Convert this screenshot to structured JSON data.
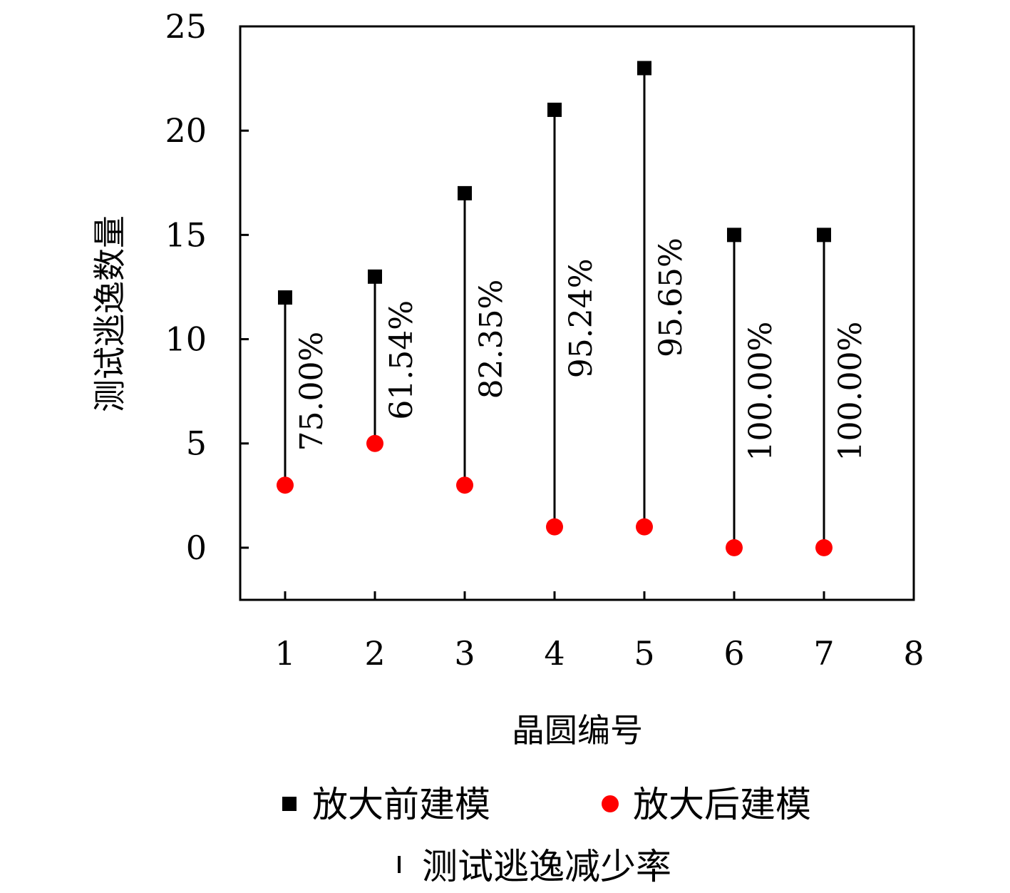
{
  "chart_data": {
    "type": "scatter",
    "x": [
      1,
      2,
      3,
      4,
      5,
      6,
      7
    ],
    "series": [
      {
        "name": "放大前建模",
        "marker": "square",
        "color": "#000000",
        "values": [
          12,
          13,
          17,
          21,
          23,
          15,
          15
        ]
      },
      {
        "name": "放大后建模",
        "marker": "circle",
        "color": "#ff0000",
        "values": [
          3,
          5,
          3,
          1,
          1,
          0,
          0
        ]
      }
    ],
    "reduction_labels": [
      "75.00%",
      "61.54%",
      "82.35%",
      "95.24%",
      "95.65%",
      "100.00%",
      "100.00%"
    ],
    "range_series_name": "测试逃逸减少率",
    "xlabel": "晶圆编号",
    "ylabel": "测试逃逸数量",
    "xlim": [
      0.5,
      8
    ],
    "ylim": [
      -2.5,
      25
    ],
    "xticks": [
      "1",
      "2",
      "3",
      "4",
      "5",
      "6",
      "7",
      "8"
    ],
    "yticks": [
      "0",
      "5",
      "10",
      "15",
      "20",
      "25"
    ],
    "grid": false,
    "legend_position": "bottom"
  }
}
